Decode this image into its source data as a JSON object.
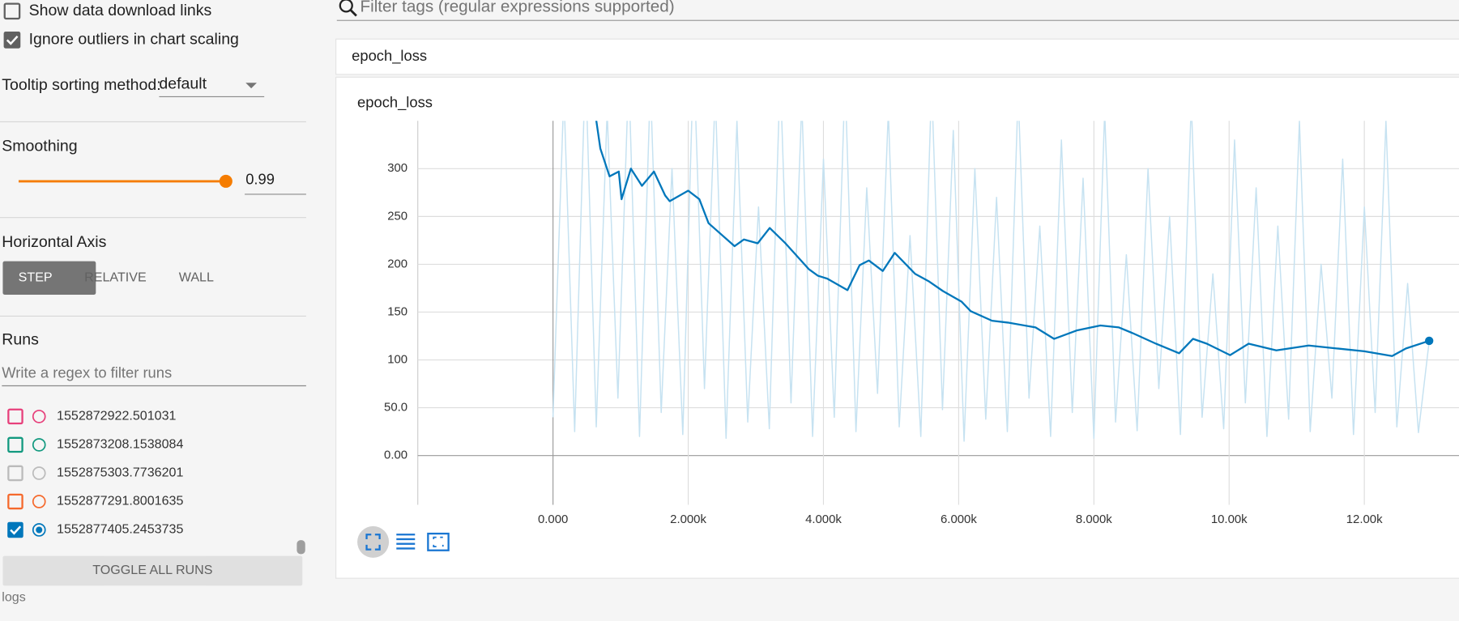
{
  "sidebar": {
    "checkboxes": [
      {
        "label": "Show data download links",
        "checked": false
      },
      {
        "label": "Ignore outliers in chart scaling",
        "checked": true
      }
    ],
    "tooltip_sorting": {
      "label": "Tooltip sorting method:",
      "value": "default"
    },
    "smoothing": {
      "label": "Smoothing",
      "value": 0.99
    },
    "horizontal_axis": {
      "label": "Horizontal Axis",
      "options": [
        "STEP",
        "RELATIVE",
        "WALL"
      ],
      "selected": "STEP"
    },
    "runs": {
      "label": "Runs",
      "filter_placeholder": "Write a regex to filter runs",
      "items": [
        {
          "name": "1552872922.501031",
          "color": "#e7407b",
          "checked": false
        },
        {
          "name": "1552873208.1538084",
          "color": "#12997f",
          "checked": false
        },
        {
          "name": "1552875303.7736201",
          "color": "#bbbbbb",
          "checked": false
        },
        {
          "name": "1552877291.8001635",
          "color": "#f5692c",
          "checked": false
        },
        {
          "name": "1552877405.2453735",
          "color": "#0077bb",
          "checked": true
        }
      ],
      "toggle_button": "TOGGLE ALL RUNS"
    },
    "footer": "logs"
  },
  "tag_filter_placeholder": "Filter tags (regular expressions supported)",
  "card_header": "epoch_loss",
  "chart_data": {
    "type": "line",
    "title": "epoch_loss",
    "xlim": [
      -2000,
      13400
    ],
    "ylim": [
      -51.5,
      350
    ],
    "xticks": [
      {
        "value": 0,
        "label": "0.000"
      },
      {
        "value": 2000,
        "label": "2.000k"
      },
      {
        "value": 4000,
        "label": "4.000k"
      },
      {
        "value": 6000,
        "label": "6.000k"
      },
      {
        "value": 8000,
        "label": "8.000k"
      },
      {
        "value": 10000,
        "label": "10.00k"
      },
      {
        "value": 12000,
        "label": "12.00k"
      }
    ],
    "yticks": [
      {
        "value": 0,
        "label": "0.00"
      },
      {
        "value": 50,
        "label": "50.0"
      },
      100,
      150,
      200,
      250,
      300
    ],
    "grid": true,
    "series": [
      {
        "color": "#c6e2f1",
        "x": [
          0,
          160,
          320,
          480,
          640,
          800,
          960,
          1120,
          1280,
          1440,
          1600,
          1760,
          1920,
          2080,
          2240,
          2400,
          2560,
          2720,
          2880,
          3040,
          3200,
          3360,
          3520,
          3680,
          3840,
          4000,
          4160,
          4320,
          4480,
          4640,
          4800,
          4960,
          5120,
          5280,
          5440,
          5600,
          5760,
          5920,
          6080,
          6240,
          6400,
          6560,
          6720,
          6880,
          7040,
          7200,
          7360,
          7520,
          7680,
          7840,
          8000,
          8160,
          8320,
          8480,
          8640,
          8800,
          8960,
          9120,
          9280,
          9440,
          9600,
          9760,
          9920,
          10080,
          10240,
          10400,
          10560,
          10720,
          10880,
          11040,
          11200,
          11360,
          11520,
          11680,
          11840,
          12000,
          12160,
          12320,
          12480,
          12640,
          12800,
          12959
        ],
        "values": [
          40,
          380,
          25,
          410,
          30,
          360,
          60,
          400,
          20,
          390,
          45,
          300,
          22,
          420,
          70,
          380,
          18,
          350,
          35,
          260,
          28,
          400,
          55,
          370,
          20,
          310,
          40,
          395,
          25,
          280,
          65,
          360,
          30,
          230,
          20,
          390,
          48,
          340,
          15,
          300,
          38,
          270,
          25,
          380,
          60,
          240,
          20,
          330,
          45,
          290,
          18,
          360,
          35,
          210,
          26,
          300,
          70,
          250,
          22,
          370,
          40,
          190,
          28,
          330,
          55,
          280,
          20,
          240,
          38,
          350,
          25,
          200,
          60,
          310,
          22,
          260,
          45,
          350,
          30,
          180,
          24,
          120
        ]
      },
      {
        "color": "#0077bb",
        "x": [
          600,
          700,
          836,
          973,
          1014,
          1151,
          1315,
          1493,
          1658,
          1726,
          2000,
          2164,
          2301,
          2685,
          2822,
          3027,
          3205,
          3438,
          3781,
          3918,
          4055,
          4356,
          4534,
          4671,
          4877,
          5055,
          5356,
          5562,
          5767,
          6041,
          6178,
          6493,
          6726,
          7137,
          7411,
          7753,
          8096,
          8370,
          8575,
          8918,
          9260,
          9466,
          9671,
          10014,
          10288,
          10699,
          11178,
          11589,
          12000,
          12411,
          12616,
          12959
        ],
        "values": [
          370,
          321,
          292,
          297,
          268,
          300,
          282,
          297,
          272,
          266,
          277,
          268,
          243,
          219,
          226,
          222,
          238,
          222,
          195,
          188,
          185,
          173,
          199,
          204,
          193,
          212,
          190,
          182,
          172,
          161,
          151,
          141,
          139,
          134,
          122,
          131,
          136,
          134,
          128,
          117,
          107,
          122,
          117,
          105,
          117,
          110,
          115,
          112,
          109,
          104,
          112,
          120
        ]
      }
    ]
  }
}
